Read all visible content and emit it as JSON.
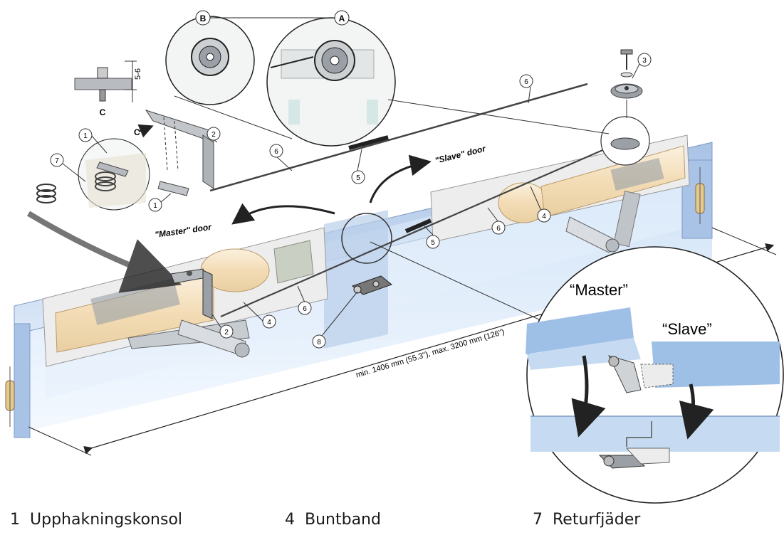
{
  "callouts": {
    "detail_b": "B",
    "detail_a": "A",
    "detail_c": "C",
    "dimension": "5-6"
  },
  "labels": {
    "master_door": "\"Master\" door",
    "slave_door": "\"Slave\" door",
    "distance": "min. 1406 mm (55.3\"), max. 3200 mm (126\")",
    "inset_master": "“Master”",
    "inset_slave": "“Slave”"
  },
  "part_numbers": [
    "1",
    "2",
    "3",
    "4",
    "5",
    "6",
    "7",
    "8"
  ],
  "legend": [
    {
      "number": "1",
      "label": "Upphakningskonsol"
    },
    {
      "number": "4",
      "label": "Buntband"
    },
    {
      "number": "7",
      "label": "Returfjäder"
    }
  ],
  "colors": {
    "door_frame": "#b9cfea",
    "closer_body": "#f6e6cc",
    "metal": "#9aa0a6",
    "line": "#333333"
  }
}
